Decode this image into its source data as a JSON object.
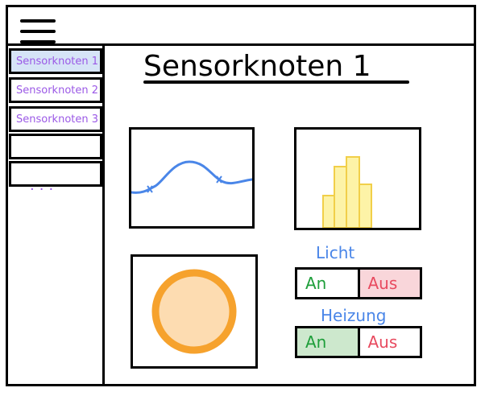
{
  "page": {
    "title": "Sensorknoten 1"
  },
  "sidebar": {
    "items": [
      {
        "label": "Sensorknoten 1",
        "active": true
      },
      {
        "label": "Sensorknoten 2",
        "active": false
      },
      {
        "label": "Sensorknoten 3",
        "active": false
      }
    ],
    "more": "..."
  },
  "controls": {
    "light": {
      "label": "Licht",
      "on": "An",
      "off": "Aus",
      "state": "Aus"
    },
    "heating": {
      "label": "Heizung",
      "on": "An",
      "off": "Aus",
      "state": "An"
    }
  },
  "icons": {
    "menu": "hamburger-menu-icon"
  },
  "colors": {
    "line": "#4a86e8",
    "bar_fill": "#fdf3a7",
    "bar_stroke": "#f1cf49",
    "gauge_ring": "#f6a22d",
    "gauge_fill": "#fddcb1",
    "on_text": "#1e9e3a",
    "off_text": "#e84a5f"
  }
}
